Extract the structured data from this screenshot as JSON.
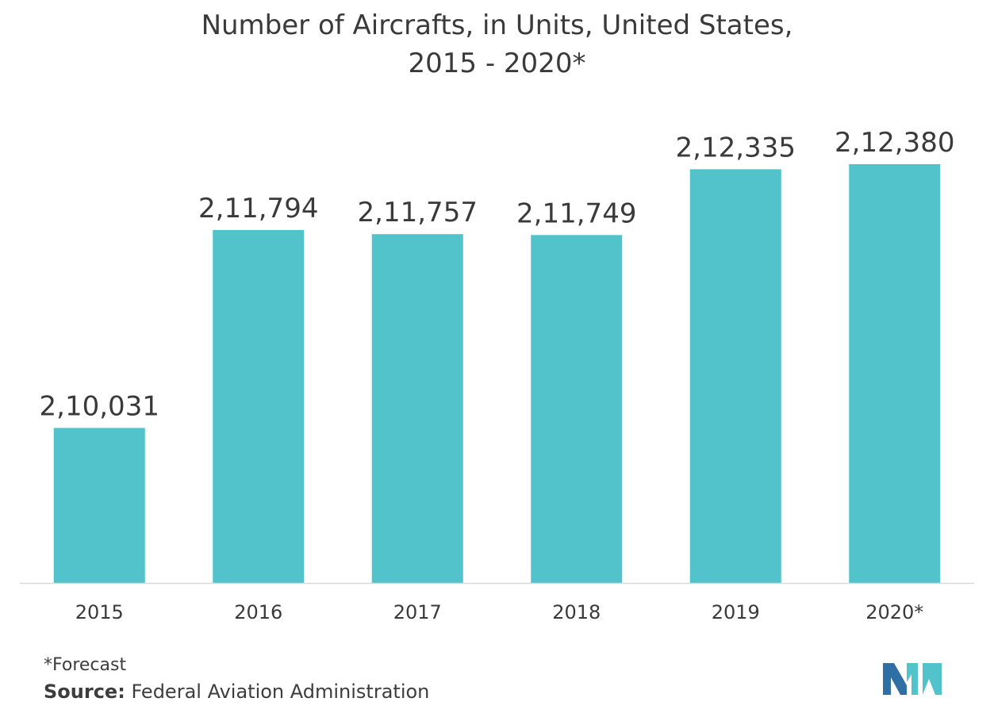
{
  "title_line1": "Number of Aircrafts, in Units, United States,",
  "title_line2": "2015 - 2020*",
  "footnote": "*Forecast",
  "source_label": "Source:",
  "source_text": "Federal Aviation Administration",
  "colors": {
    "bar": "#52c3cb",
    "axis": "#d9d9d9",
    "logo_dark": "#2f6fa4",
    "logo_light": "#52c3cb"
  },
  "logo_icon": "mordor-intelligence-logo",
  "chart_data": {
    "type": "bar",
    "title": "Number of Aircrafts, in Units, United States, 2015 - 2020*",
    "xlabel": "",
    "ylabel": "",
    "categories": [
      "2015",
      "2016",
      "2017",
      "2018",
      "2019",
      "2020*"
    ],
    "values": [
      210031,
      211794,
      211757,
      211749,
      212335,
      212380
    ],
    "data_labels": [
      "2,10,031",
      "2,11,794",
      "2,11,757",
      "2,11,749",
      "2,12,335",
      "2,12,380"
    ],
    "ylim": [
      208650,
      212500
    ],
    "grid": false,
    "legend": "none"
  }
}
